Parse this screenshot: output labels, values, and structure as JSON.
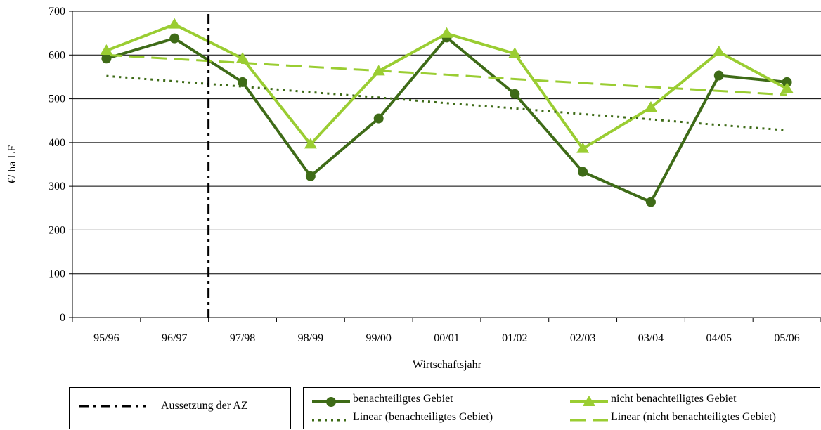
{
  "chart_data": {
    "type": "line",
    "title": "",
    "xlabel": "Wirtschaftsjahr",
    "ylabel": "€/ ha LF",
    "ylim": [
      0,
      700
    ],
    "yticks": [
      0,
      100,
      200,
      300,
      400,
      500,
      600,
      700
    ],
    "categories": [
      "95/96",
      "96/97",
      "97/98",
      "98/99",
      "99/00",
      "00/01",
      "01/02",
      "02/03",
      "03/04",
      "04/05",
      "05/06"
    ],
    "grid": "horizontal",
    "legend_position": "bottom",
    "series": [
      {
        "name": "benachteiligtes Gebiet",
        "style": "line-circle",
        "color": "#3e6b17",
        "values": [
          592,
          638,
          538,
          323,
          455,
          640,
          511,
          333,
          264,
          553,
          538
        ]
      },
      {
        "name": "nicht benachteiligtes Gebiet",
        "style": "line-triangle",
        "color": "#9acd32",
        "values": [
          610,
          670,
          592,
          396,
          563,
          649,
          603,
          386,
          480,
          607,
          523
        ]
      },
      {
        "name": "Linear (benachteiligtes Gebiet)",
        "style": "dotted",
        "color": "#3e6b17",
        "values": [
          552,
          540,
          528,
          515,
          503,
          490,
          478,
          465,
          453,
          440,
          428
        ]
      },
      {
        "name": "Linear (nicht benachteiligtes Gebiet)",
        "style": "dashed",
        "color": "#9acd32",
        "values": [
          600,
          591,
          582,
          573,
          564,
          555,
          545,
          536,
          527,
          518,
          509
        ]
      }
    ],
    "annotation": {
      "label": "Aussetzung der AZ",
      "style": "dash-dot",
      "between": [
        "96/97",
        "97/98"
      ]
    }
  }
}
